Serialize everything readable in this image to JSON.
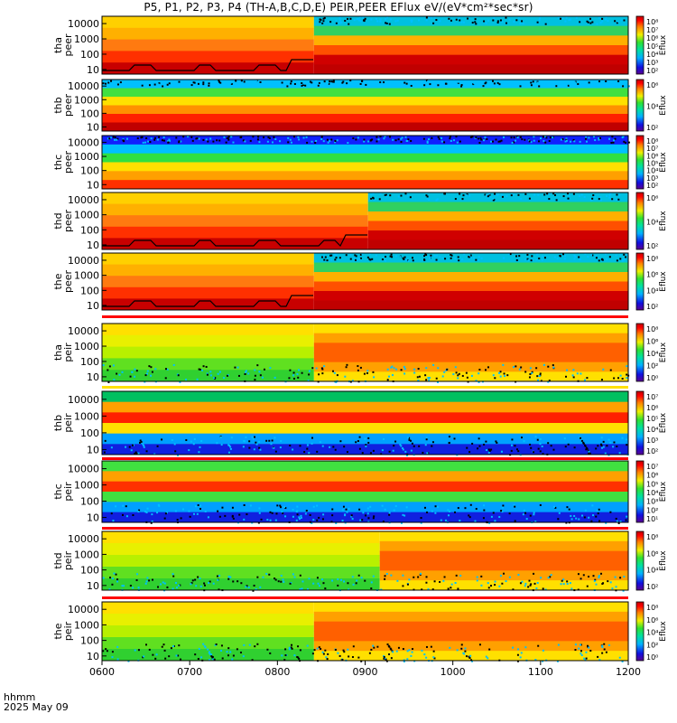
{
  "title": "P5, P1, P2, P3, P4 (TH-A,B,C,D,E) PEIR,PEER EFlux eV/(eV*cm²*sec*sr)",
  "time_axis": {
    "label_line1": "hhmm",
    "label_line2": "2025 May 09",
    "ticks": [
      "0600",
      "0700",
      "0800",
      "0900",
      "1000",
      "1100",
      "1200"
    ]
  },
  "chart_data": [
    {
      "type": "heatmap",
      "ylabel": [
        "tha",
        "peer"
      ],
      "yticks": [
        "10000",
        "1000",
        "100",
        "10"
      ],
      "ylog": true,
      "ylim": [
        5,
        30000
      ],
      "colorbar": {
        "label": "Eflux",
        "ticks": [
          "10⁸",
          "10⁷",
          "10⁶",
          "10⁵",
          "10⁴",
          "10³",
          "10²"
        ]
      },
      "transition_time": "0825",
      "black_line": true
    },
    {
      "type": "heatmap",
      "ylabel": [
        "thb",
        "peer"
      ],
      "yticks": [
        "10000",
        "1000",
        "100",
        "10"
      ],
      "ylog": true,
      "ylim": [
        5,
        30000
      ],
      "colorbar": {
        "label": "Eflux",
        "ticks": [
          "10⁶",
          "10⁴",
          "10²"
        ]
      }
    },
    {
      "type": "heatmap",
      "ylabel": [
        "thc",
        "peer"
      ],
      "yticks": [
        "10000",
        "1000",
        "100",
        "10"
      ],
      "ylog": true,
      "ylim": [
        5,
        30000
      ],
      "colorbar": {
        "label": "Eflux",
        "ticks": [
          "10⁸",
          "10⁷",
          "10⁶",
          "10⁵",
          "10⁴",
          "10³",
          "10²"
        ]
      }
    },
    {
      "type": "heatmap",
      "ylabel": [
        "thd",
        "peer"
      ],
      "yticks": [
        "10000",
        "1000",
        "100",
        "10"
      ],
      "ylog": true,
      "ylim": [
        5,
        30000
      ],
      "colorbar": {
        "label": "Eflux",
        "ticks": [
          "10⁶",
          "10⁴",
          "10²"
        ]
      },
      "transition_time": "0902",
      "black_line": true
    },
    {
      "type": "heatmap",
      "ylabel": [
        "the",
        "peer"
      ],
      "yticks": [
        "10000",
        "1000",
        "100",
        "10"
      ],
      "ylog": true,
      "ylim": [
        5,
        30000
      ],
      "colorbar": {
        "label": "Eflux",
        "ticks": [
          "10⁸",
          "10⁶",
          "10⁴",
          "10²"
        ]
      },
      "transition_time": "0825",
      "black_line": true
    },
    {
      "type": "heatmap",
      "ylabel": [
        "tha",
        "peir"
      ],
      "yticks": [
        "10000",
        "1000",
        "100",
        "10"
      ],
      "ylog": true,
      "ylim": [
        5,
        30000
      ],
      "colorbar": {
        "label": "Eflux",
        "ticks": [
          "10⁸",
          "10⁶",
          "10⁴",
          "10²",
          "10⁰"
        ]
      },
      "transition_time": "0825"
    },
    {
      "type": "heatmap",
      "ylabel": [
        "thb",
        "peir"
      ],
      "yticks": [
        "10000",
        "1000",
        "100",
        "10"
      ],
      "ylog": true,
      "ylim": [
        5,
        30000
      ],
      "colorbar": {
        "label": "Eflux",
        "ticks": [
          "10⁷",
          "10⁶",
          "10⁵",
          "10⁴",
          "10³",
          "10²"
        ]
      }
    },
    {
      "type": "heatmap",
      "ylabel": [
        "thc",
        "peir"
      ],
      "yticks": [
        "10000",
        "1000",
        "100",
        "10"
      ],
      "ylog": true,
      "ylim": [
        5,
        30000
      ],
      "colorbar": {
        "label": "Eflux",
        "ticks": [
          "10⁷",
          "10⁶",
          "10⁵",
          "10⁴",
          "10³",
          "10²",
          "10¹"
        ]
      }
    },
    {
      "type": "heatmap",
      "ylabel": [
        "thd",
        "peir"
      ],
      "yticks": [
        "10000",
        "1000",
        "100",
        "10"
      ],
      "ylog": true,
      "ylim": [
        5,
        30000
      ],
      "colorbar": {
        "label": "Eflux",
        "ticks": [
          "10⁸",
          "10⁶",
          "10⁴",
          "10²"
        ]
      },
      "transition_time": "0910"
    },
    {
      "type": "heatmap",
      "ylabel": [
        "the",
        "peir"
      ],
      "yticks": [
        "10000",
        "1000",
        "100",
        "10"
      ],
      "ylog": true,
      "ylim": [
        5,
        30000
      ],
      "colorbar": {
        "label": "Eflux",
        "ticks": [
          "10⁸",
          "10⁶",
          "10⁴",
          "10²",
          "10⁰"
        ]
      },
      "transition_time": "0825"
    }
  ]
}
